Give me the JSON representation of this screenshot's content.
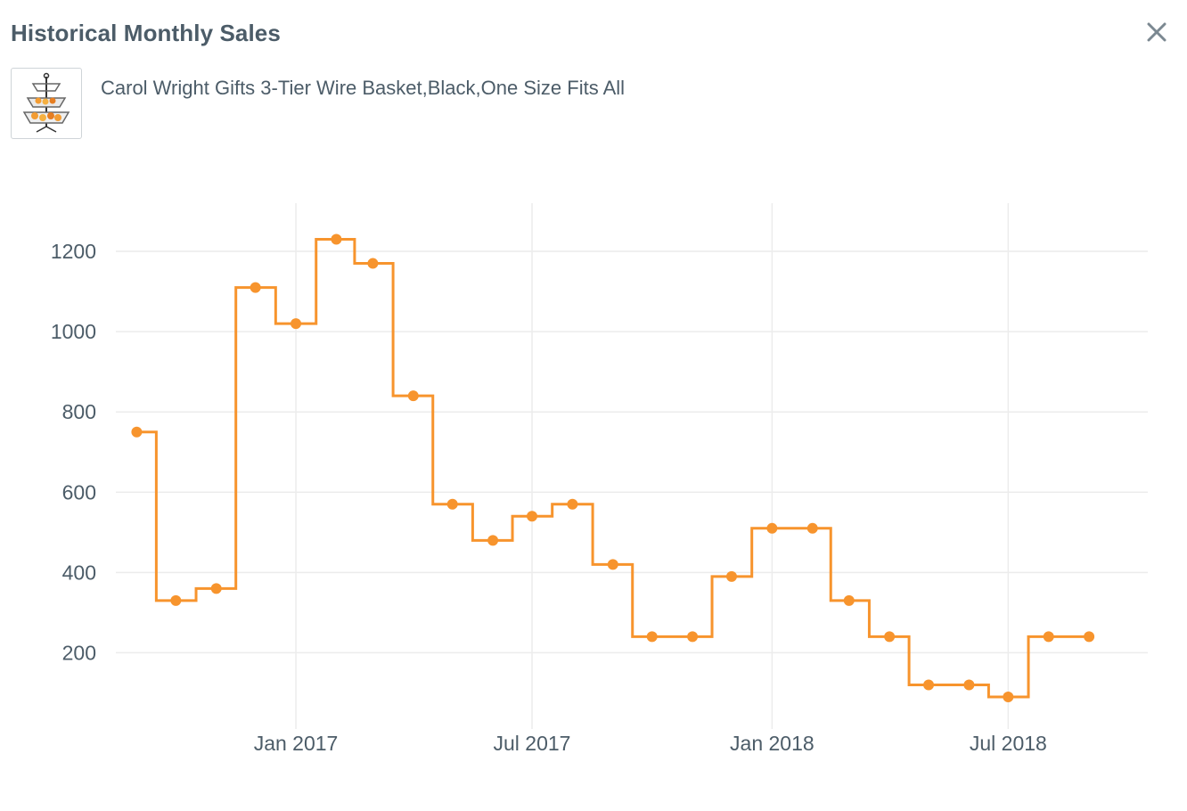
{
  "modal": {
    "title": "Historical Monthly Sales",
    "close_icon": "close-icon"
  },
  "product": {
    "name": "Carol Wright Gifts 3-Tier Wire Basket,Black,One Size Fits All",
    "thumbnail_icon": "three-tier-basket-image"
  },
  "colors": {
    "line": "#f7942d",
    "grid": "#ececec",
    "text": "#4c5c68"
  },
  "chart_data": {
    "type": "line",
    "line_shape": "step",
    "title": "",
    "xlabel": "",
    "ylabel": "",
    "grid": true,
    "x_ticks": [
      {
        "label": "Jan 2017",
        "date": "2017-01-01"
      },
      {
        "label": "Jul 2017",
        "date": "2017-07-01"
      },
      {
        "label": "Jan 2018",
        "date": "2018-01-01"
      },
      {
        "label": "Jul 2018",
        "date": "2018-07-01"
      }
    ],
    "y_ticks": [
      200,
      400,
      600,
      800,
      1000,
      1200
    ],
    "ylim": [
      10,
      1320
    ],
    "xlim": [
      "2016-08-16",
      "2018-10-16"
    ],
    "series": [
      {
        "x": [
          "2016-09-01",
          "2016-10-01",
          "2016-11-01",
          "2016-12-01",
          "2017-01-01",
          "2017-02-01",
          "2017-03-01",
          "2017-04-01",
          "2017-05-01",
          "2017-06-01",
          "2017-07-01",
          "2017-08-01",
          "2017-09-01",
          "2017-10-01",
          "2017-11-01",
          "2017-12-01",
          "2018-01-01",
          "2018-02-01",
          "2018-03-01",
          "2018-04-01",
          "2018-05-01",
          "2018-06-01",
          "2018-07-01",
          "2018-08-01",
          "2018-09-01"
        ],
        "values": [
          750,
          330,
          360,
          1110,
          1020,
          1230,
          1170,
          840,
          570,
          480,
          540,
          570,
          420,
          240,
          240,
          390,
          510,
          510,
          330,
          240,
          120,
          120,
          90,
          240,
          240
        ]
      }
    ]
  }
}
